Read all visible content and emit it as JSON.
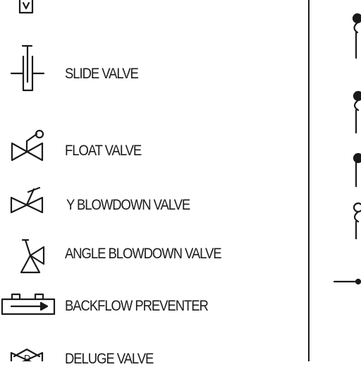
{
  "legend": {
    "items": [
      {
        "id": "slide-valve",
        "label": "SLIDE VALVE"
      },
      {
        "id": "float-valve",
        "label": "FLOAT VALVE"
      },
      {
        "id": "y-blowdown-valve",
        "label": "Y BLOWDOWN VALVE"
      },
      {
        "id": "angle-blowdown-valve",
        "label": "ANGLE BLOWDOWN VALVE"
      },
      {
        "id": "backflow-preventer",
        "label": "BACKFLOW PREVENTER"
      },
      {
        "id": "deluge-valve",
        "label": "DELUGE VALVE"
      }
    ],
    "deluge_symbol_letter": "D"
  }
}
